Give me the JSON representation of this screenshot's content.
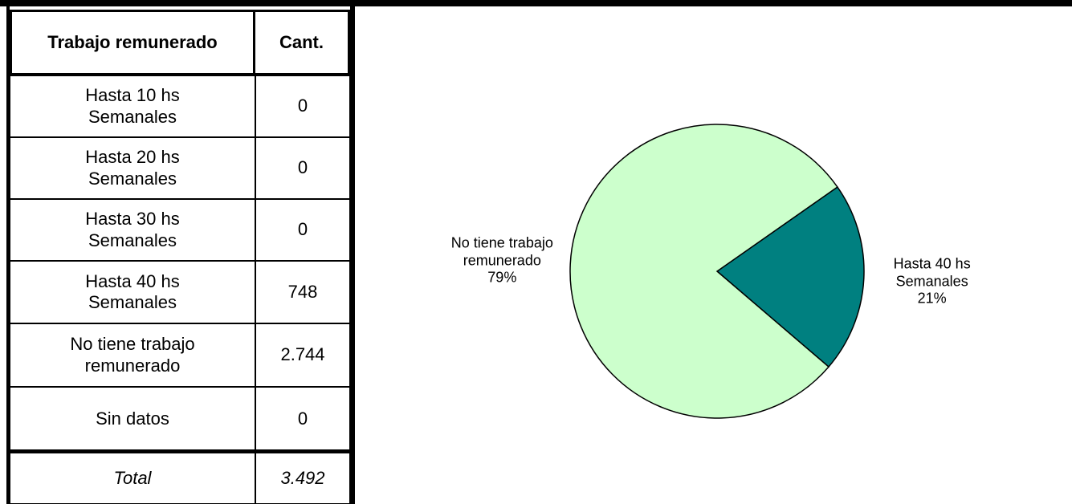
{
  "table": {
    "header": [
      "Trabajo remunerado",
      "Cant."
    ],
    "rows": [
      [
        "Hasta 10 hs Semanales",
        "0"
      ],
      [
        "Hasta 20 hs Semanales",
        "0"
      ],
      [
        "Hasta 30 hs Semanales",
        "0"
      ],
      [
        "Hasta 40 hs Semanales",
        "748"
      ],
      [
        "No tiene trabajo remunerado",
        "2.744"
      ],
      [
        "Sin datos",
        "0"
      ]
    ],
    "total": [
      "Total",
      "3.492"
    ]
  },
  "chart_data": {
    "type": "pie",
    "categories": [
      "Hasta 40 hs Semanales",
      "No tiene trabajo remunerado"
    ],
    "values": [
      21,
      79
    ],
    "value_labels": [
      "21%",
      "79%"
    ],
    "colors": [
      "#008080",
      "#ccffcc"
    ]
  }
}
